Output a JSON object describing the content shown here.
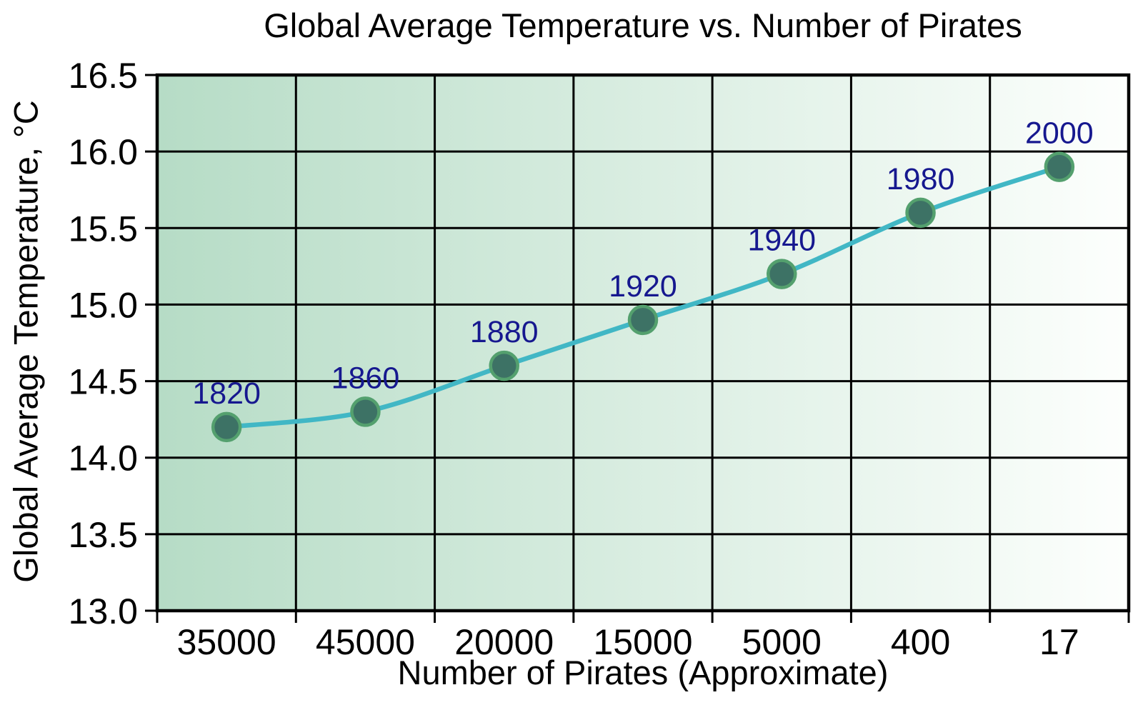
{
  "chart_data": {
    "type": "line",
    "title": "Global Average Temperature vs. Number of Pirates",
    "xlabel": "Number of Pirates (Approximate)",
    "ylabel": "Global Average Temperature, °C",
    "x_tick_labels": [
      "35000",
      "45000",
      "20000",
      "15000",
      "5000",
      "400",
      "17"
    ],
    "y_tick_labels": [
      "16.5",
      "16.0",
      "15.5",
      "15.0",
      "14.5",
      "14.0",
      "13.5",
      "13.0"
    ],
    "ylim": [
      13.0,
      16.5
    ],
    "grid": true,
    "legend": "none",
    "points": [
      {
        "year": "1820",
        "pirates": 35000,
        "temp": 14.2
      },
      {
        "year": "1860",
        "pirates": 45000,
        "temp": 14.3
      },
      {
        "year": "1880",
        "pirates": 20000,
        "temp": 14.6
      },
      {
        "year": "1920",
        "pirates": 15000,
        "temp": 14.9
      },
      {
        "year": "1940",
        "pirates": 5000,
        "temp": 15.2
      },
      {
        "year": "1980",
        "pirates": 400,
        "temp": 15.6
      },
      {
        "year": "2000",
        "pirates": 17,
        "temp": 15.9
      }
    ],
    "colors": {
      "page_background": "#ffffff",
      "plot_bg_left": "#b6dcc6",
      "plot_bg_right": "#fdfffd",
      "grid": "#000000",
      "axis": "#000000",
      "line": "#41b7c5",
      "marker_fill": "#3d7265",
      "marker_stroke": "#54a06e",
      "year_label": "#16188f",
      "tick_text": "#000000"
    }
  }
}
